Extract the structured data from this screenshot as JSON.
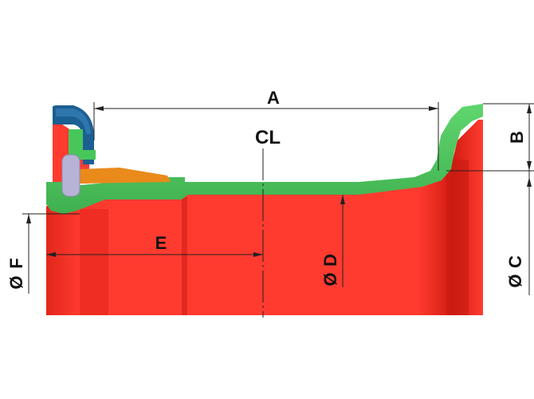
{
  "diagram": {
    "labels": {
      "a": "A",
      "b": "B",
      "c": "C",
      "d": "D",
      "e": "E",
      "f": "F",
      "cl": "CL",
      "diameter_symbol": "Ø"
    },
    "colors": {
      "wheel_red": "#ff3b30",
      "wheel_red_dark": "#d81e14",
      "rim_green": "#47c75a",
      "flange_blue": "#1b5f93",
      "wedge_orange": "#e98a1b",
      "pin_lavender": "#b7b3d6",
      "dimension_line": "#222222"
    }
  }
}
